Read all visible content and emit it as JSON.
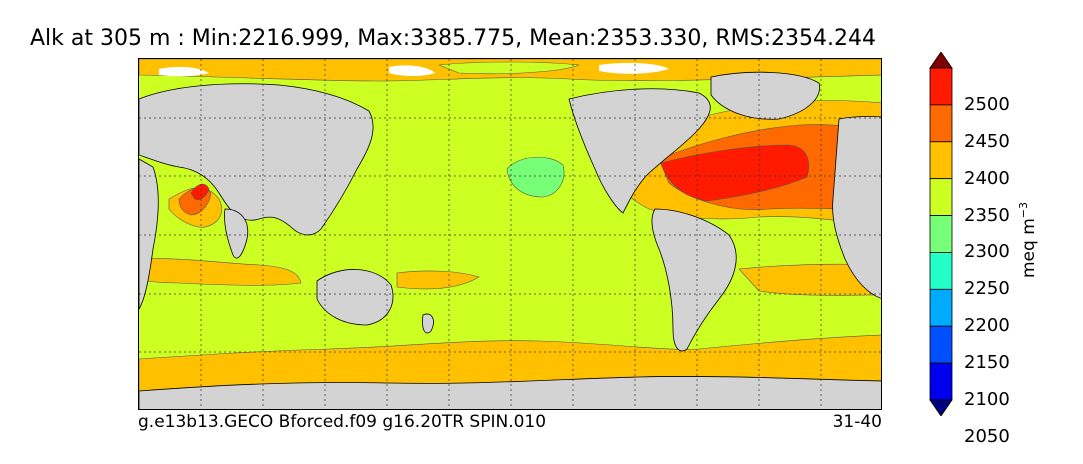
{
  "title": "Alk at 305 m : Min:2216.999, Max:3385.775, Mean:2353.330, RMS:2354.244",
  "footer": {
    "run_name": "g.e13b13.GECO Bforced.f09 g16.20TR SPIN.010",
    "years": "31-40"
  },
  "colorbar": {
    "units_base": "meq m",
    "units_exp": "−3",
    "ticks": [
      "2500",
      "2450",
      "2400",
      "2350",
      "2300",
      "2250",
      "2200",
      "2150",
      "2100",
      "2050"
    ],
    "colors": [
      "#7f0000",
      "#ff1a00",
      "#ff6a00",
      "#ffc000",
      "#ccff22",
      "#77ff77",
      "#22ffc8",
      "#00aaff",
      "#0050ff",
      "#0000ee",
      "#00007f"
    ],
    "extend": "both"
  },
  "map": {
    "land_color": "#d3d3d3",
    "gridlines": "dashed",
    "projection": "global lat-lon, Pacific-centered"
  }
}
